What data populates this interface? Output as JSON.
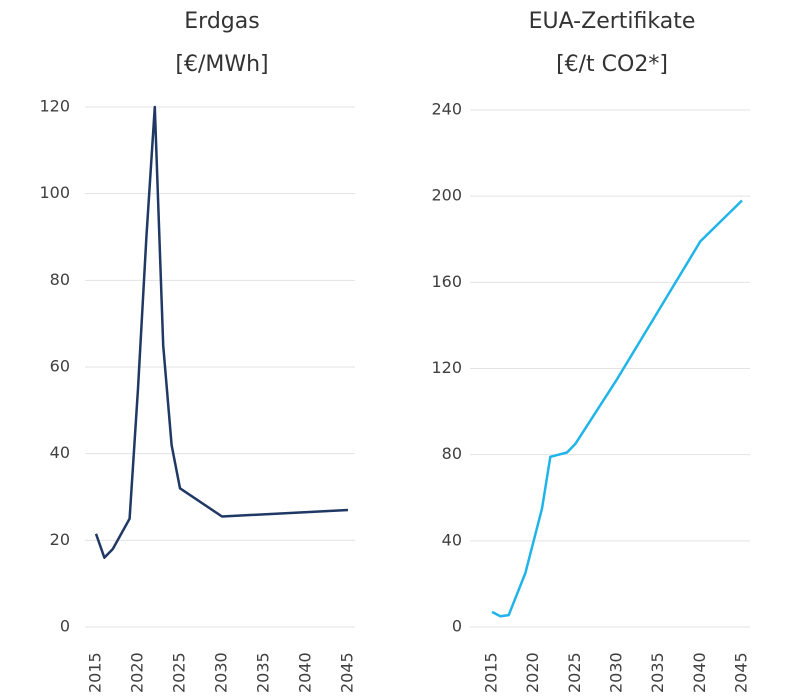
{
  "chart_data": [
    {
      "type": "line",
      "title": "Erdgas",
      "subtitle": "[€/MWh]",
      "x": [
        2015,
        2016,
        2017,
        2019,
        2020,
        2021,
        2022,
        2023,
        2024,
        2025,
        2030,
        2045
      ],
      "values": [
        21.5,
        16,
        18,
        25,
        55,
        90,
        120,
        65,
        42,
        32,
        25.5,
        27
      ],
      "color": "#1f3864",
      "xlim": [
        2015,
        2045
      ],
      "xticks": [
        2015,
        2020,
        2025,
        2030,
        2035,
        2040,
        2045
      ],
      "ylim": [
        0,
        120
      ],
      "yticks": [
        0,
        20,
        40,
        60,
        80,
        100,
        120
      ],
      "grid": true
    },
    {
      "type": "line",
      "title": "EUA-Zertifikate",
      "subtitle": "[€/t CO2*]",
      "x": [
        2015,
        2016,
        2017,
        2019,
        2021,
        2022,
        2024,
        2025,
        2030,
        2040,
        2045
      ],
      "values": [
        7,
        5,
        5.5,
        25,
        55,
        79,
        81,
        85,
        115,
        179,
        198
      ],
      "color": "#1fb4ea",
      "xlim": [
        2015,
        2045
      ],
      "xticks": [
        2015,
        2020,
        2025,
        2030,
        2035,
        2040,
        2045
      ],
      "ylim": [
        0,
        240
      ],
      "yticks": [
        0,
        40,
        80,
        120,
        160,
        200,
        240
      ],
      "grid": true
    }
  ]
}
